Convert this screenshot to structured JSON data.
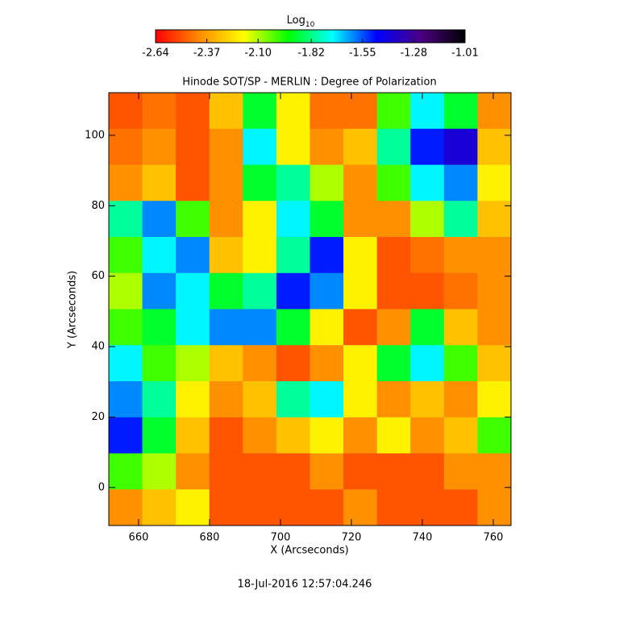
{
  "chart_data": {
    "type": "heatmap",
    "title": "Hinode SOT/SP - MERLIN : Degree of Polarization",
    "x_label": "X (Arcseconds)",
    "y_label": "Y (Arcseconds)",
    "footer": "18-Jul-2016 12:57:04.246",
    "colorbar_title": {
      "base": "Log",
      "subscript": "10"
    },
    "colormap": [
      "#ff0000",
      "#ff8c00",
      "#ffff00",
      "#00ff00",
      "#00ffff",
      "#0000ff",
      "#4b0082",
      "#000000"
    ],
    "zlim": [
      -2.64,
      -1.01
    ],
    "zticks": [
      -2.64,
      -2.37,
      {
        "value": -2.1,
        "label": "-2.10"
      },
      -1.82,
      -1.55,
      -1.28,
      -1.01
    ],
    "xlim": [
      651.6,
      765
    ],
    "xticks": [
      660,
      680,
      700,
      720,
      740,
      760
    ],
    "ylim": [
      -10.8,
      112.1
    ],
    "yticks": [
      0,
      20,
      40,
      60,
      80,
      100
    ],
    "values": [
      [
        -2.5,
        -2.45,
        -2.5,
        -2.3,
        -1.9,
        -2.2,
        -2.45,
        -2.45,
        -2.0,
        -1.7,
        -1.9,
        -2.4
      ],
      [
        -2.45,
        -2.4,
        -2.5,
        -2.4,
        -1.7,
        -2.2,
        -2.4,
        -2.3,
        -1.8,
        -1.5,
        -1.4,
        -2.3
      ],
      [
        -2.4,
        -2.3,
        -2.5,
        -2.4,
        -1.9,
        -1.8,
        -2.1,
        -2.4,
        -2.0,
        -1.7,
        -1.6,
        -2.2
      ],
      [
        -1.8,
        -1.6,
        -2.0,
        -2.4,
        -2.2,
        -1.7,
        -1.9,
        -2.4,
        -2.4,
        -2.1,
        -1.8,
        -2.3
      ],
      [
        -2.0,
        -1.7,
        -1.6,
        -2.3,
        -2.2,
        -1.8,
        -1.5,
        -2.2,
        -2.5,
        -2.45,
        -2.4,
        -2.4
      ],
      [
        -2.1,
        -1.6,
        -1.7,
        -1.9,
        -1.8,
        -1.5,
        -1.6,
        -2.2,
        -2.5,
        -2.5,
        -2.45,
        -2.4
      ],
      [
        -2.0,
        -1.9,
        -1.7,
        -1.6,
        -1.6,
        -1.9,
        -2.2,
        -2.5,
        -2.4,
        -1.9,
        -2.3,
        -2.4
      ],
      [
        -1.7,
        -2.0,
        -2.1,
        -2.3,
        -2.4,
        -2.5,
        -2.4,
        -2.2,
        -1.9,
        -1.7,
        -2.0,
        -2.3
      ],
      [
        -1.6,
        -1.8,
        -2.2,
        -2.4,
        -2.3,
        -1.8,
        -1.7,
        -2.2,
        -2.4,
        -2.3,
        -2.4,
        -2.2
      ],
      [
        -1.5,
        -1.9,
        -2.3,
        -2.5,
        -2.4,
        -2.3,
        -2.2,
        -2.4,
        -2.2,
        -2.4,
        -2.3,
        -2.0
      ],
      [
        -2.0,
        -2.1,
        -2.4,
        -2.5,
        -2.5,
        -2.5,
        -2.4,
        -2.5,
        -2.5,
        -2.5,
        -2.4,
        -2.4
      ],
      [
        -2.4,
        -2.3,
        -2.2,
        -2.5,
        -2.5,
        -2.5,
        -2.5,
        -2.4,
        -2.5,
        -2.5,
        -2.5,
        -2.4
      ]
    ]
  }
}
